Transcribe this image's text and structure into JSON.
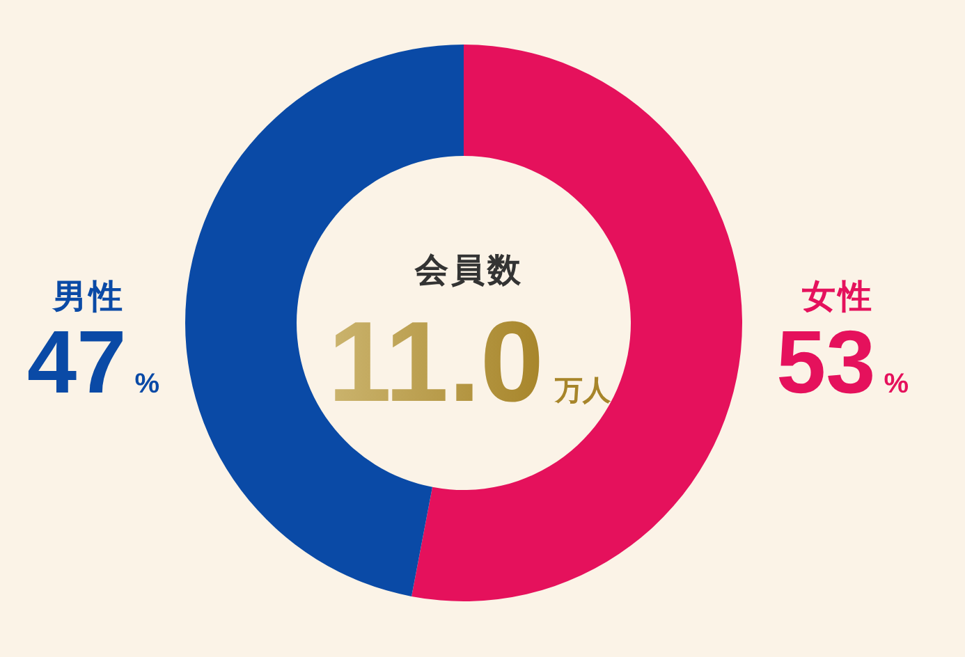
{
  "chart_data": {
    "type": "donut",
    "title": "会員数",
    "categories": [
      "女性",
      "男性"
    ],
    "values": [
      53,
      47
    ],
    "colors": [
      "#e5115c",
      "#0a4aa6"
    ],
    "value_labels": [
      "53%",
      "47%"
    ],
    "annotations": [
      "11.0",
      "万人"
    ]
  }
}
